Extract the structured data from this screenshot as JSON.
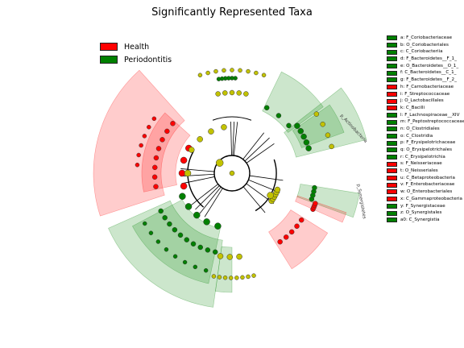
{
  "chart_data": {
    "type": "cladogram",
    "title": "Significantly Represented Taxa",
    "classes": [
      {
        "name": "Health",
        "color": "#ff0000"
      },
      {
        "name": "Periodontitis",
        "color": "#008000"
      }
    ],
    "node_colors": {
      "neutral": "#c2c200",
      "Health": "#ff0000",
      "Periodontitis": "#008000"
    },
    "taxa": [
      {
        "key": "a",
        "name": "F_Coriobacteriaceae",
        "class": "Periodontitis"
      },
      {
        "key": "b",
        "name": "O_Coriobacteriales",
        "class": "Periodontitis"
      },
      {
        "key": "c",
        "name": "C_Coriobacteriia",
        "class": "Periodontitis"
      },
      {
        "key": "d",
        "name": "F_Bacteroidetes__F_1_",
        "class": "Periodontitis"
      },
      {
        "key": "e",
        "name": "O_Bacteroidetes__O_1_",
        "class": "Periodontitis"
      },
      {
        "key": "f",
        "name": "C_Bacteroidetes__C_1_",
        "class": "Periodontitis"
      },
      {
        "key": "g",
        "name": "F_Bacteroidetes__F_2_",
        "class": "Periodontitis"
      },
      {
        "key": "h",
        "name": "F_Carnobacteriaceae",
        "class": "Health"
      },
      {
        "key": "i",
        "name": "F_Streptococcaceae",
        "class": "Health"
      },
      {
        "key": "j",
        "name": "O_Lactobacillales",
        "class": "Health"
      },
      {
        "key": "k",
        "name": "C_Bacilli",
        "class": "Health"
      },
      {
        "key": "l",
        "name": "F_Lachnospiraceae__XIV",
        "class": "Periodontitis"
      },
      {
        "key": "m",
        "name": "F_Peptostreptococcaceae",
        "class": "Periodontitis"
      },
      {
        "key": "n",
        "name": "O_Clostridiales",
        "class": "Periodontitis"
      },
      {
        "key": "o",
        "name": "C_Clostridia",
        "class": "Periodontitis"
      },
      {
        "key": "p",
        "name": "F_Erysipelotrichaceae",
        "class": "Periodontitis"
      },
      {
        "key": "q",
        "name": "O_Erysipelotrichales",
        "class": "Periodontitis"
      },
      {
        "key": "r",
        "name": "C_Erysipelotrichia",
        "class": "Periodontitis"
      },
      {
        "key": "s",
        "name": "F_Neisseriaceae",
        "class": "Health"
      },
      {
        "key": "t",
        "name": "O_Neisseriales",
        "class": "Health"
      },
      {
        "key": "u",
        "name": "C_Betaproteobacteria",
        "class": "Health"
      },
      {
        "key": "v",
        "name": "F_Enterobacteriaceae",
        "class": "Health"
      },
      {
        "key": "w",
        "name": "O_Enterobacteriales",
        "class": "Health"
      },
      {
        "key": "x",
        "name": "C_Gammaproteobacteria",
        "class": "Health"
      },
      {
        "key": "y",
        "name": "F_Synergistaceae",
        "class": "Periodontitis"
      },
      {
        "key": "z",
        "name": "O_Synergistales",
        "class": "Periodontitis"
      },
      {
        "key": "a0",
        "name": "C_Synergistia",
        "class": "Periodontitis"
      }
    ],
    "clade_annotations": [
      {
        "text": "p_Actinobacteria",
        "class": "Periodontitis"
      },
      {
        "text": "p_Synergistetes",
        "class": "Periodontitis"
      }
    ]
  }
}
